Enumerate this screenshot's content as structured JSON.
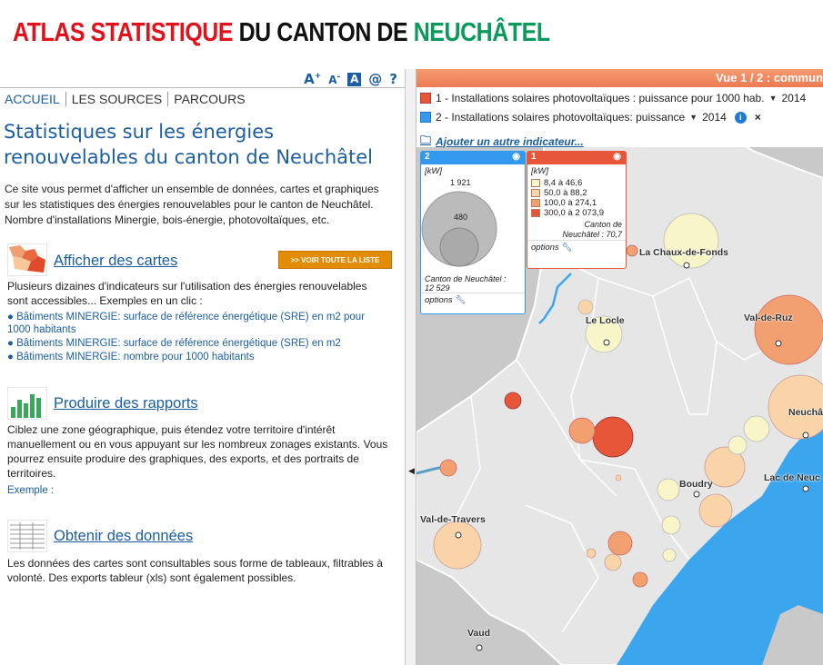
{
  "header": {
    "title_part1": "ATLAS STATISTIQUE",
    "title_part2": "DU CANTON DE",
    "title_part3": "NEUCHÂTEL"
  },
  "tools": {
    "font_up": "A+",
    "font_down": "A-",
    "contrast": "A",
    "contact": "@",
    "help": "?"
  },
  "nav": [
    "ACCUEIL",
    "LES SOURCES",
    "PARCOURS"
  ],
  "main": {
    "heading": "Statistiques sur les énergies renouvelables du canton de Neuchâtel",
    "intro": "Ce site vous permet d'afficher un ensemble de données, cartes et graphiques sur les statistiques des énergies renouvelables pour le canton de Neuchâtel. Nombre d'installations Minergie, bois-énergie, photovoltaïques, etc."
  },
  "sections": {
    "maps": {
      "title": "Afficher des cartes",
      "button": ">> VOIR TOUTE LA LISTE",
      "text": "Plusieurs dizaines d'indicateurs sur l'utilisation des énergies renouvelables sont accessibles... Exemples en un clic :",
      "links": [
        "● Bâtiments MINERGIE: surface de référence énergétique (SRE) en m2 pour 1000 habitants",
        "● Bâtiments MINERGIE: surface de référence énergétique (SRE) en m2",
        "● Bâtiments MINERGIE: nombre pour 1000 habitants"
      ]
    },
    "reports": {
      "title": "Produire des rapports",
      "text": "Ciblez une zone géographique, puis étendez votre territoire d'intérêt manuellement ou en vous appuyant sur les nombreux zonages existants. Vous pourrez ensuite produire des graphiques, des exports, et des portraits de territoires.",
      "link": "Exemple :"
    },
    "data": {
      "title": "Obtenir des données",
      "text": "Les données des cartes sont consultables sous forme de tableaux, filtrables à volonté. Des exports tableur (xls) sont également possibles."
    }
  },
  "map": {
    "header": "Vue 1 / 2 : commun",
    "indicator1": {
      "label": "1 - Installations solaires photovoltaïques : puissance pour 1000 hab.",
      "year": "2014",
      "color": "#e8563a"
    },
    "indicator2": {
      "label": "2 - Installations solaires photovoltaïques: puissance",
      "year": "2014",
      "color": "#3399ee"
    },
    "add_indicator": "Ajouter un autre indicateur...",
    "legend2": {
      "num": "2",
      "unit": "[kW]",
      "max": "1 921",
      "mid": "480",
      "total_label": "Canton de Neuchâtel :",
      "total_value": "12 529",
      "options": "options",
      "color": "#3399ee"
    },
    "legend1": {
      "num": "1",
      "unit": "[kW]",
      "classes": [
        {
          "label": "8,4 à 46,6",
          "color": "#f8f5c8"
        },
        {
          "label": "50,0 à 88,2",
          "color": "#f9d4a8"
        },
        {
          "label": "100,0 à 274,1",
          "color": "#f3a070"
        },
        {
          "label": "300,0 à 2 073,9",
          "color": "#e8563a"
        }
      ],
      "canton_label": "Canton de",
      "canton_value": "Neuchâtel : 70,7",
      "options": "options",
      "color": "#e8563a"
    },
    "places": [
      "La Chaux-de-Fonds",
      "Le Locle",
      "Val-de-Ruz",
      "Neuchâ",
      "Boudry",
      "Lac de Neuc",
      "Val-de-Travers",
      "Vaud"
    ]
  }
}
